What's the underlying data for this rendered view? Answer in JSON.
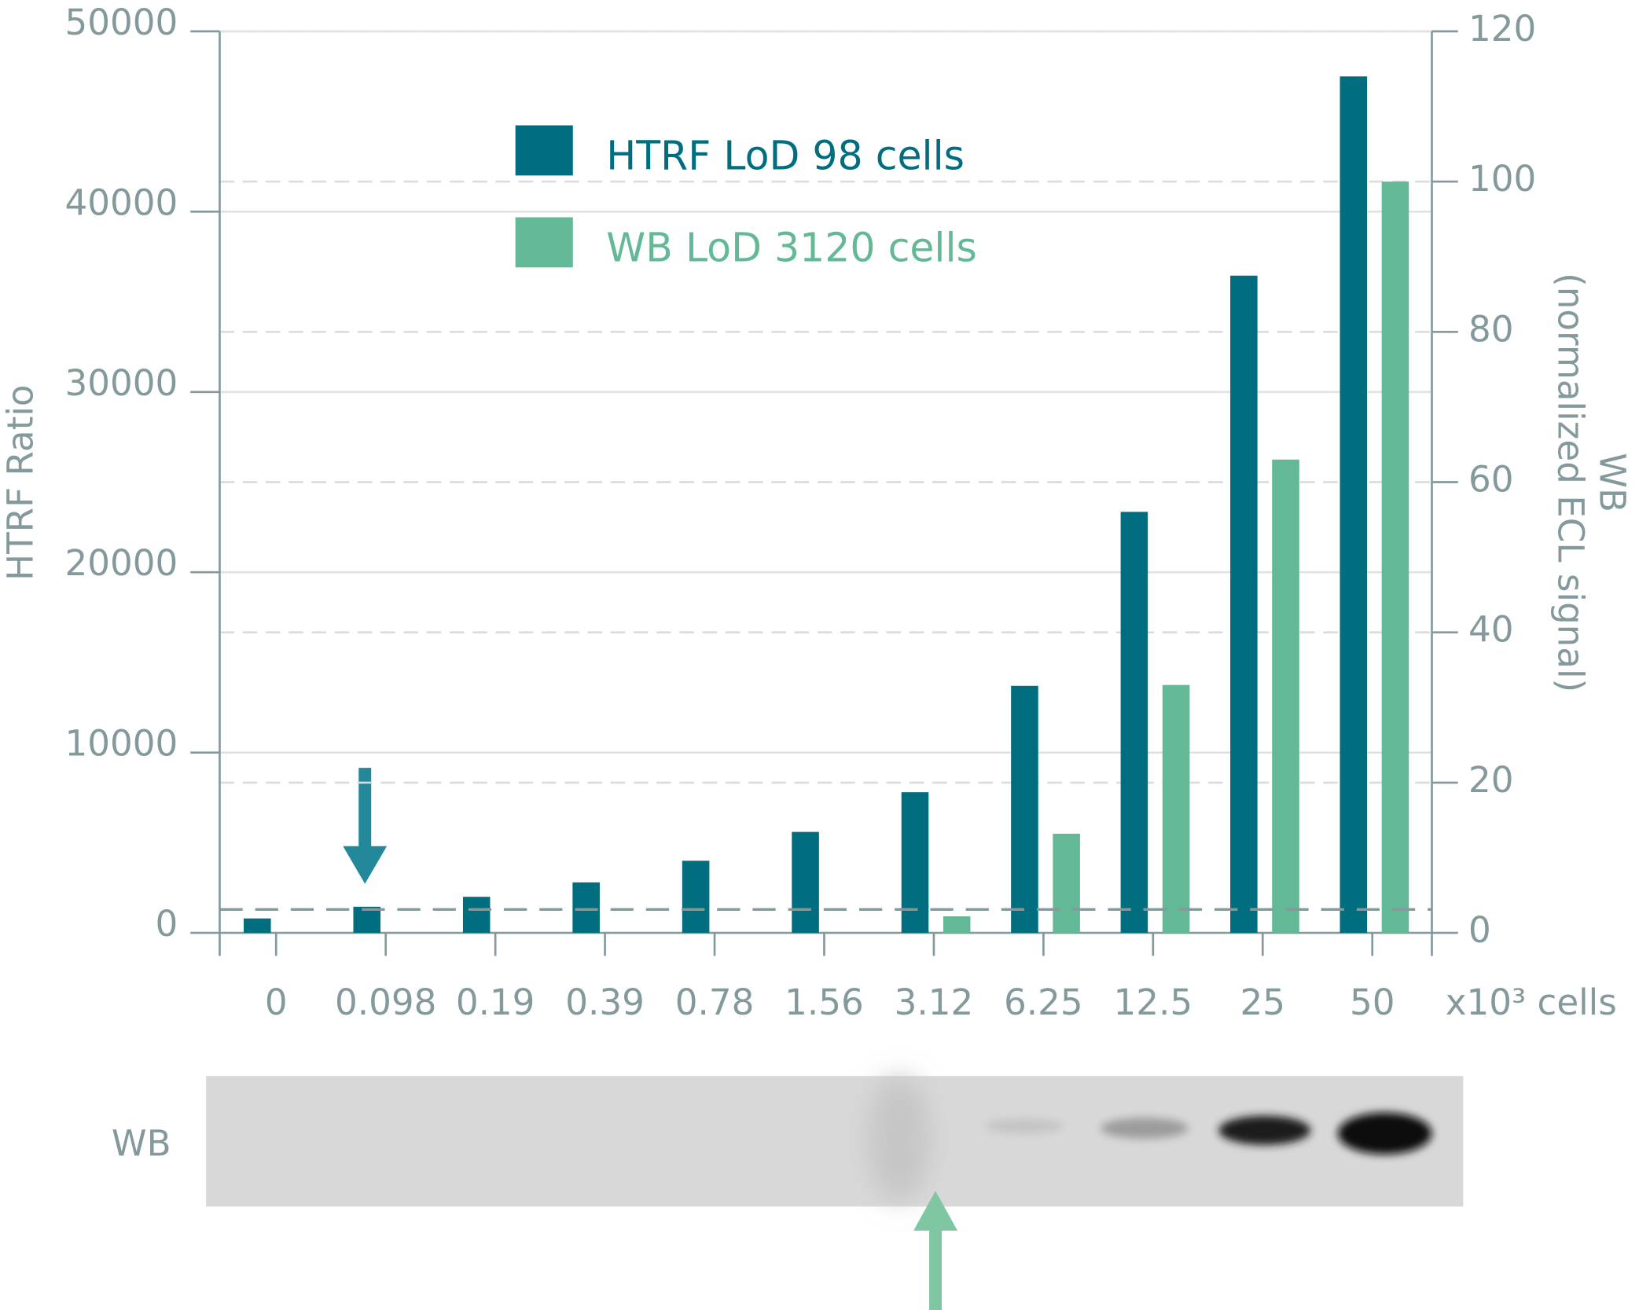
{
  "chart_data": {
    "type": "bar",
    "categories": [
      "0",
      "0.098",
      "0.19",
      "0.39",
      "0.78",
      "1.56",
      "3.12",
      "6.25",
      "12.5",
      "25",
      "50"
    ],
    "xlabel": "x10³ cells",
    "ylabel": "HTRF Ratio",
    "y2label": [
      "WB",
      "(normalized ECL signal)"
    ],
    "series": [
      {
        "name": "HTRF LoD 98 cells",
        "color": "#006e7f",
        "axis": "y",
        "values": [
          800,
          1450,
          2000,
          2800,
          4000,
          5600,
          7800,
          13700,
          23350,
          36450,
          47500
        ]
      },
      {
        "name": "WB LoD 3120 cells",
        "color": "#63b995",
        "axis": "y2",
        "values": [
          null,
          null,
          null,
          null,
          null,
          null,
          2.2,
          13.2,
          33,
          63,
          100
        ]
      }
    ],
    "ylim": [
      0,
      50000
    ],
    "yticks": [
      0,
      10000,
      20000,
      30000,
      40000,
      50000
    ],
    "y2lim": [
      0,
      120
    ],
    "y2ticks": [
      0,
      20,
      40,
      60,
      80,
      100,
      120
    ],
    "threshold": 1300,
    "grid": true,
    "legend": "upper left",
    "blot_label": "WB"
  }
}
